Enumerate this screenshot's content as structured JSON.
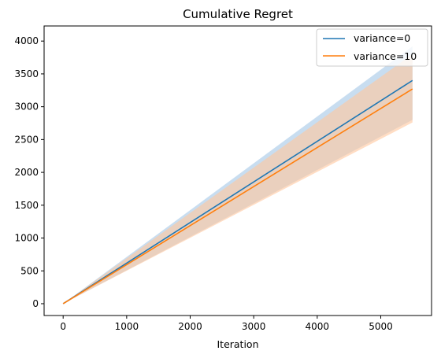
{
  "chart_data": {
    "type": "line",
    "title": "Cumulative Regret",
    "xlabel": "Iteration",
    "ylabel": "",
    "xlim": [
      -300,
      5800
    ],
    "ylim": [
      -180,
      4230
    ],
    "xticks": [
      0,
      1000,
      2000,
      3000,
      4000,
      5000
    ],
    "yticks": [
      0,
      500,
      1000,
      1500,
      2000,
      2500,
      3000,
      3500,
      4000
    ],
    "grid": false,
    "legend_position": "upper right",
    "series": [
      {
        "name": "variance=0",
        "color": "#1f77b4",
        "band_color": "#a6c8e6",
        "x": [
          0,
          5500
        ],
        "y": [
          0,
          3400
        ],
        "lower": [
          0,
          2800
        ],
        "upper": [
          0,
          3920
        ]
      },
      {
        "name": "variance=10",
        "color": "#ff7f0e",
        "band_color": "#ffc8a0",
        "x": [
          0,
          5500
        ],
        "y": [
          0,
          3270
        ],
        "lower": [
          0,
          2760
        ],
        "upper": [
          0,
          3800
        ]
      }
    ]
  }
}
